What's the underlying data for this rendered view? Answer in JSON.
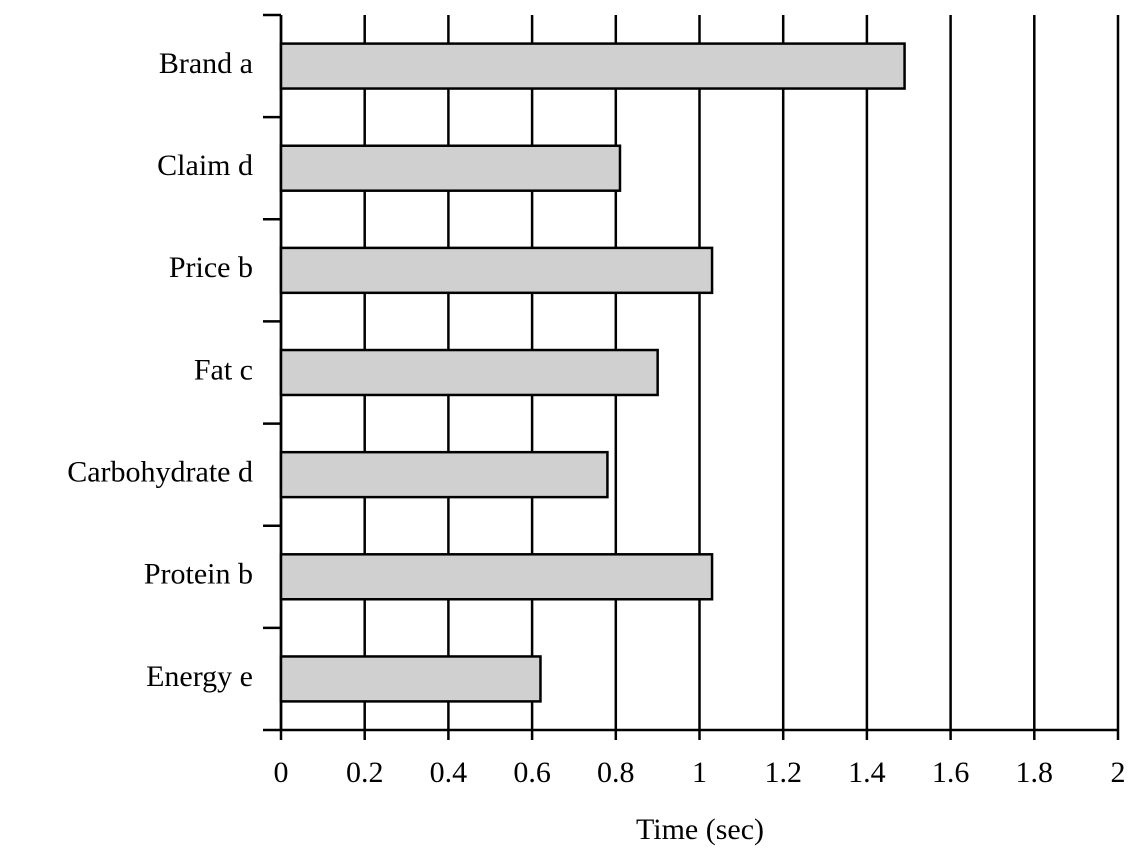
{
  "chart_data": {
    "type": "barh",
    "x_label": "Time (sec)",
    "categories": [
      "Brand a",
      "Claim d",
      "Price b",
      "Fat c",
      "Carbohydrate d",
      "Protein b",
      "Energy e"
    ],
    "values": [
      1.49,
      0.81,
      1.03,
      0.9,
      0.78,
      1.03,
      0.62
    ],
    "color": "#d0d0d0",
    "xlim": [
      0,
      2
    ],
    "xticks": [
      0,
      0.2,
      0.4,
      0.6,
      0.8,
      1,
      1.2,
      1.4,
      1.6,
      1.8,
      2
    ],
    "grid": true
  }
}
